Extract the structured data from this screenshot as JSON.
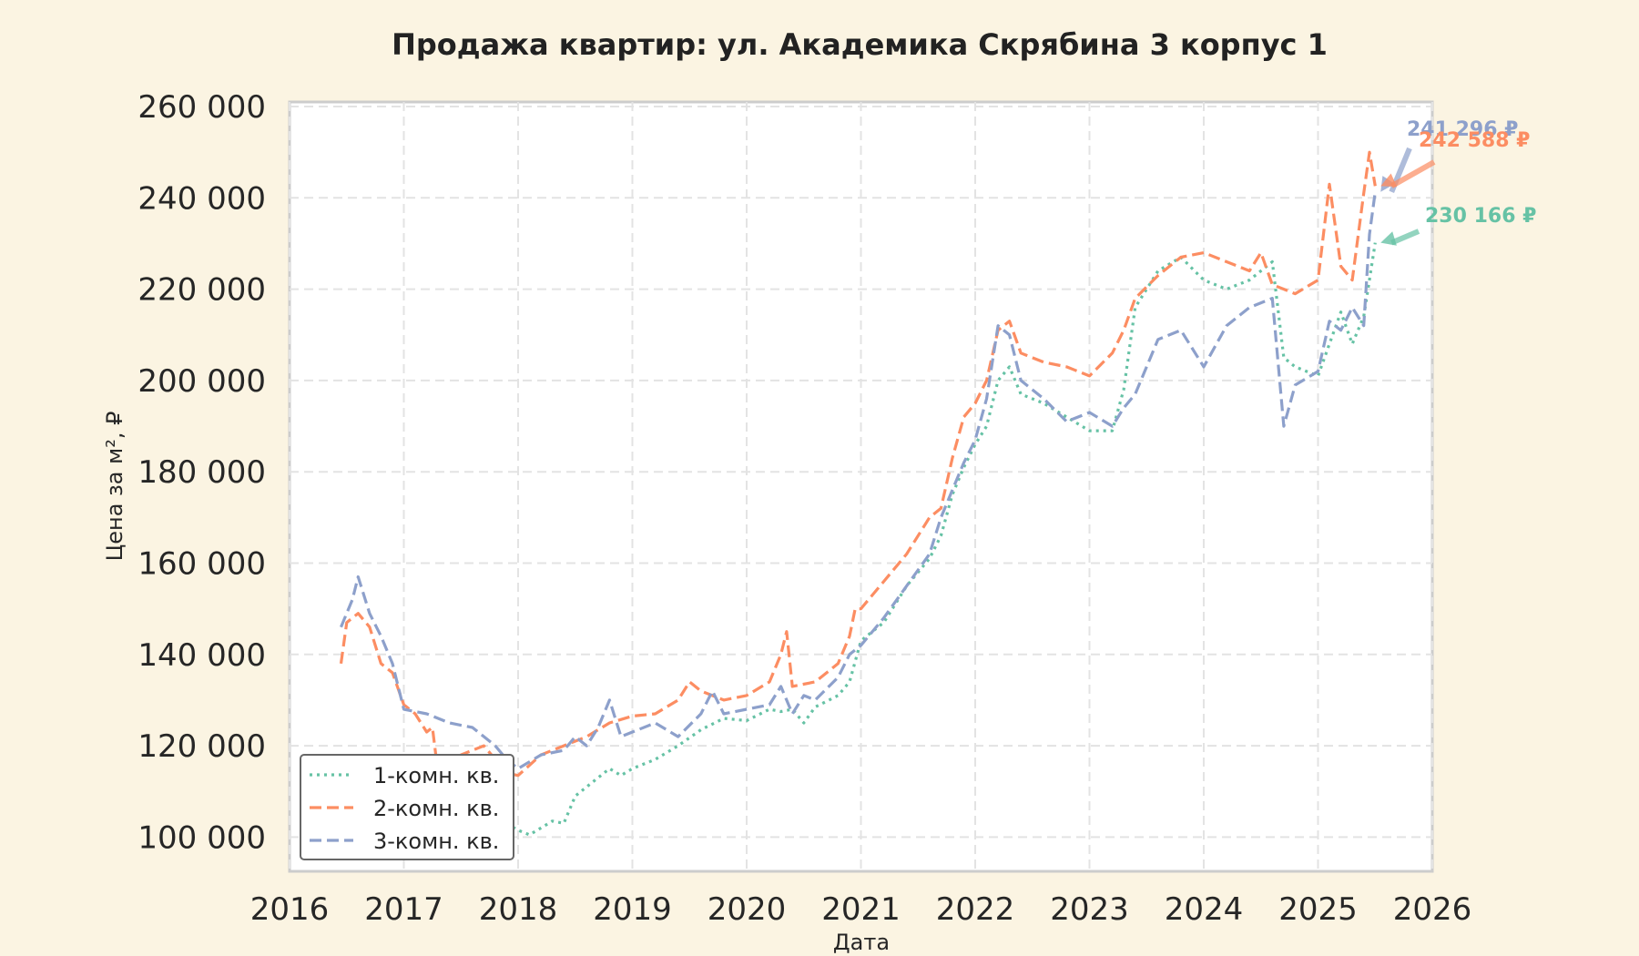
{
  "chart_data": {
    "type": "line",
    "title": "Продажа квартир: ул. Академика Скрябина 3 корпус 1",
    "xlabel": "Дата",
    "ylabel": "Цена за м², ₽",
    "xlim": [
      2016,
      2026
    ],
    "ylim": [
      92500,
      261000
    ],
    "x_ticks": [
      "2016",
      "2017",
      "2018",
      "2019",
      "2020",
      "2021",
      "2022",
      "2023",
      "2024",
      "2025",
      "2026"
    ],
    "y_ticks": [
      "100 000",
      "120 000",
      "140 000",
      "160 000",
      "180 000",
      "200 000",
      "220 000",
      "240 000",
      "260 000"
    ],
    "y_tick_values": [
      100000,
      120000,
      140000,
      160000,
      180000,
      200000,
      220000,
      240000,
      260000
    ],
    "grid": true,
    "legend_position": "bottom-left",
    "series": [
      {
        "name": "1-комн. кв.",
        "color": "#66c2a5",
        "style": "dotted",
        "x": [
          2017.9,
          2018.0,
          2018.1,
          2018.2,
          2018.3,
          2018.4,
          2018.5,
          2018.6,
          2018.7,
          2018.8,
          2018.9,
          2019.0,
          2019.2,
          2019.4,
          2019.6,
          2019.8,
          2020.0,
          2020.2,
          2020.3,
          2020.4,
          2020.5,
          2020.6,
          2020.8,
          2020.9,
          2021.0,
          2021.2,
          2021.4,
          2021.6,
          2021.7,
          2021.8,
          2021.9,
          2022.0,
          2022.1,
          2022.2,
          2022.3,
          2022.4,
          2022.6,
          2022.8,
          2023.0,
          2023.2,
          2023.3,
          2023.4,
          2023.6,
          2023.8,
          2024.0,
          2024.2,
          2024.4,
          2024.6,
          2024.7,
          2024.8,
          2025.0,
          2025.1,
          2025.2,
          2025.3,
          2025.4,
          2025.5
        ],
        "y": [
          103000,
          101500,
          100500,
          102000,
          103500,
          103000,
          109000,
          111000,
          113000,
          115000,
          113500,
          115000,
          117000,
          120000,
          123500,
          126000,
          125500,
          128000,
          127500,
          128000,
          125000,
          128500,
          131000,
          134000,
          143000,
          147000,
          155000,
          161000,
          166000,
          175000,
          181000,
          186000,
          190000,
          200000,
          203000,
          197000,
          195000,
          192000,
          189000,
          189000,
          198000,
          216000,
          224000,
          227000,
          222000,
          220000,
          222000,
          226000,
          205000,
          203000,
          201000,
          208000,
          215000,
          208000,
          214000,
          230166
        ]
      },
      {
        "name": "2-комн. кв.",
        "color": "#fc8d62",
        "style": "dashed",
        "x": [
          2016.45,
          2016.5,
          2016.6,
          2016.7,
          2016.8,
          2016.9,
          2017.0,
          2017.1,
          2017.2,
          2017.25,
          2017.3,
          2017.5,
          2017.7,
          2017.8,
          2017.9,
          2018.0,
          2018.2,
          2018.4,
          2018.6,
          2018.8,
          2019.0,
          2019.2,
          2019.4,
          2019.5,
          2019.6,
          2019.8,
          2020.0,
          2020.2,
          2020.3,
          2020.35,
          2020.4,
          2020.6,
          2020.8,
          2020.9,
          2020.95,
          2021.0,
          2021.2,
          2021.4,
          2021.6,
          2021.7,
          2021.8,
          2021.9,
          2022.0,
          2022.1,
          2022.2,
          2022.3,
          2022.4,
          2022.6,
          2022.8,
          2023.0,
          2023.2,
          2023.3,
          2023.4,
          2023.6,
          2023.8,
          2024.0,
          2024.2,
          2024.4,
          2024.5,
          2024.6,
          2024.7,
          2024.8,
          2025.0,
          2025.1,
          2025.2,
          2025.3,
          2025.4,
          2025.45,
          2025.5
        ],
        "y": [
          138000,
          147000,
          149000,
          146000,
          138000,
          136000,
          129000,
          127000,
          123000,
          124000,
          114000,
          118000,
          120000,
          117000,
          114000,
          113500,
          118000,
          120000,
          122000,
          125000,
          126500,
          127000,
          130000,
          134000,
          132000,
          130000,
          131000,
          134000,
          140000,
          145000,
          133000,
          134000,
          138000,
          144000,
          150000,
          150000,
          156000,
          162000,
          170000,
          172000,
          183000,
          192000,
          195000,
          200000,
          211000,
          213000,
          206000,
          204000,
          203000,
          201000,
          206000,
          211000,
          218000,
          223000,
          227000,
          228000,
          226000,
          224000,
          228000,
          221000,
          220000,
          219000,
          222000,
          243000,
          225000,
          222000,
          241000,
          250000,
          242588
        ]
      },
      {
        "name": "3-комн. кв.",
        "color": "#8da0cb",
        "style": "dashed",
        "x": [
          2016.45,
          2016.55,
          2016.6,
          2016.7,
          2016.8,
          2016.9,
          2017.0,
          2017.2,
          2017.4,
          2017.6,
          2017.8,
          2017.9,
          2018.0,
          2018.2,
          2018.4,
          2018.5,
          2018.6,
          2018.7,
          2018.8,
          2018.9,
          2019.0,
          2019.2,
          2019.4,
          2019.6,
          2019.7,
          2019.8,
          2020.0,
          2020.2,
          2020.3,
          2020.4,
          2020.5,
          2020.6,
          2020.8,
          2020.9,
          2021.0,
          2021.2,
          2021.4,
          2021.6,
          2021.7,
          2021.8,
          2021.9,
          2022.0,
          2022.1,
          2022.2,
          2022.3,
          2022.4,
          2022.6,
          2022.8,
          2023.0,
          2023.2,
          2023.3,
          2023.4,
          2023.6,
          2023.8,
          2024.0,
          2024.2,
          2024.4,
          2024.6,
          2024.7,
          2024.8,
          2025.0,
          2025.1,
          2025.2,
          2025.3,
          2025.4,
          2025.45,
          2025.5
        ],
        "y": [
          146000,
          152000,
          157000,
          149000,
          144000,
          138000,
          128000,
          127000,
          125000,
          124000,
          120000,
          117000,
          115000,
          118000,
          119000,
          122000,
          120000,
          124000,
          130000,
          122000,
          123000,
          125000,
          122000,
          127000,
          132000,
          127000,
          128000,
          129000,
          133000,
          127000,
          131000,
          130000,
          135000,
          140000,
          142000,
          148000,
          155000,
          162000,
          170000,
          176000,
          182000,
          187000,
          196000,
          212000,
          210000,
          200000,
          196000,
          191000,
          193000,
          190000,
          194000,
          197000,
          209000,
          211000,
          203000,
          212000,
          216000,
          218000,
          190000,
          199000,
          202000,
          213000,
          211000,
          216000,
          212000,
          232000,
          241296
        ]
      }
    ],
    "annotations": [
      {
        "text": "241 296 ₽",
        "series": 2,
        "x": 2025.5,
        "y": 241296
      },
      {
        "text": "242 588 ₽",
        "series": 1,
        "x": 2025.5,
        "y": 242588
      },
      {
        "text": "230 166 ₽",
        "series": 0,
        "x": 2025.5,
        "y": 230166
      }
    ]
  }
}
